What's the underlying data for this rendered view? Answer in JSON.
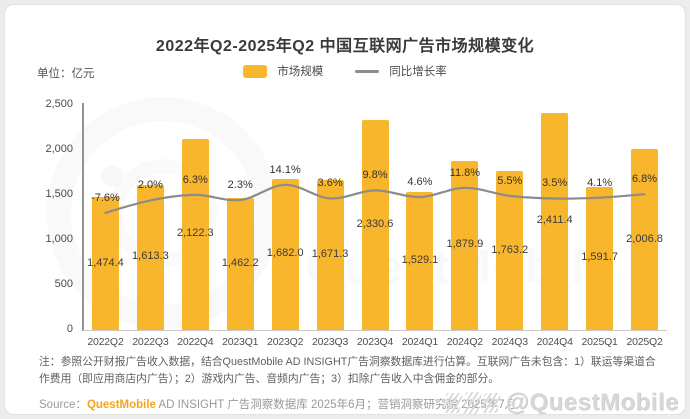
{
  "page": {
    "title": "2022年Q2-2025年Q2 中国互联网广告市场规模变化",
    "unit_label": "单位：亿元"
  },
  "legend": {
    "bar_label": "市场规模",
    "line_label": "同比增长率"
  },
  "colors": {
    "bar": "#F8B62C",
    "line": "#8C8C8C",
    "brand_orange": "#F6A21C"
  },
  "chart_data": {
    "type": "bar",
    "title": "2022年Q2-2025年Q2 中国互联网广告市场规模变化",
    "xlabel": "",
    "ylabel": "亿元",
    "ylim": [
      0,
      2500
    ],
    "grid": false,
    "legend_position": "top",
    "categories": [
      "2022Q2",
      "2022Q3",
      "2022Q4",
      "2023Q1",
      "2023Q2",
      "2023Q3",
      "2023Q4",
      "2024Q1",
      "2024Q2",
      "2024Q3",
      "2024Q4",
      "2025Q1",
      "2025Q2"
    ],
    "yticks": [
      2500,
      2000,
      1500,
      1000,
      500,
      0
    ],
    "ytick_labels": [
      "2,500",
      "2,000",
      "1,500",
      "1,000",
      "500",
      "0"
    ],
    "series": [
      {
        "name": "市场规模",
        "type": "bar",
        "values": [
          1474.4,
          1613.3,
          2122.3,
          1462.2,
          1682.0,
          1671.3,
          2330.6,
          1529.1,
          1879.9,
          1763.2,
          2411.4,
          1591.7,
          2006.8
        ],
        "labels": [
          "1,474.4",
          "1,613.3",
          "2,122.3",
          "1,462.2",
          "1,682.0",
          "1,671.3",
          "2,330.6",
          "1,529.1",
          "1,879.9",
          "1,763.2",
          "2,411.4",
          "1,591.7",
          "2,006.8"
        ]
      },
      {
        "name": "同比增长率",
        "type": "line",
        "values": [
          -7.6,
          2.0,
          6.3,
          2.3,
          14.1,
          3.6,
          9.8,
          4.6,
          11.8,
          5.5,
          3.5,
          4.1,
          6.8
        ],
        "labels": [
          "-7.6%",
          "2.0%",
          "6.3%",
          "2.3%",
          "14.1%",
          "3.6%",
          "9.8%",
          "4.6%",
          "11.8%",
          "5.5%",
          "3.5%",
          "4.1%",
          "6.8%"
        ]
      }
    ]
  },
  "note": {
    "text": "注：参照公开财报广告收入数据，结合QuestMobile AD INSIGHT广告洞察数据库进行估算。互联网广告未包含：1）联运等渠道合作费用（即应用商店内广告）；2）游戏内广告、音频内广告；3）扣除广告收入中含佣金的部分。"
  },
  "source": {
    "prefix": "Source：",
    "brand": "QuestMobile",
    "rest": " AD INSIGHT 广告洞察数据库 2025年6月；营销洞察研究院 2025年7月"
  },
  "watermark": {
    "center_text": "QuestMobile",
    "handle": "@QuestMobile"
  }
}
